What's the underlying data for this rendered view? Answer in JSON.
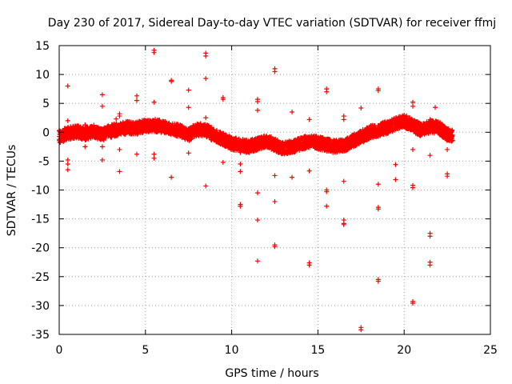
{
  "chart_data": {
    "type": "scatter",
    "title": "Day 230 of 2017, Sidereal Day-to-day VTEC variation (SDTVAR) for receiver ffmj",
    "xlabel": "GPS time / hours",
    "ylabel": "SDTVAR / TECUs",
    "xlim": [
      0,
      25
    ],
    "ylim": [
      -35,
      15
    ],
    "xticks": [
      0,
      5,
      10,
      15,
      20,
      25
    ],
    "yticks": [
      -35,
      -30,
      -25,
      -20,
      -15,
      -10,
      -5,
      0,
      5,
      10,
      15
    ],
    "grid": true,
    "marker": "+",
    "color": "#ff0000",
    "band": [
      [
        0.0,
        -0.8
      ],
      [
        0.5,
        -0.2
      ],
      [
        1.0,
        0.1
      ],
      [
        1.5,
        -0.3
      ],
      [
        2.0,
        0.2
      ],
      [
        2.5,
        -0.4
      ],
      [
        3.0,
        0.2
      ],
      [
        3.5,
        0.5
      ],
      [
        4.0,
        0.8
      ],
      [
        4.5,
        0.7
      ],
      [
        5.0,
        1.1
      ],
      [
        5.5,
        1.2
      ],
      [
        6.0,
        1.0
      ],
      [
        6.5,
        0.6
      ],
      [
        7.0,
        0.2
      ],
      [
        7.5,
        -0.5
      ],
      [
        8.0,
        0.5
      ],
      [
        8.5,
        0.3
      ],
      [
        9.0,
        -0.5
      ],
      [
        9.5,
        -1.2
      ],
      [
        10.0,
        -2.0
      ],
      [
        10.5,
        -2.2
      ],
      [
        11.0,
        -2.5
      ],
      [
        11.5,
        -2.0
      ],
      [
        12.0,
        -1.5
      ],
      [
        12.5,
        -2.2
      ],
      [
        13.0,
        -2.8
      ],
      [
        13.5,
        -2.5
      ],
      [
        14.0,
        -2.0
      ],
      [
        14.5,
        -1.6
      ],
      [
        15.0,
        -1.8
      ],
      [
        15.5,
        -2.2
      ],
      [
        16.0,
        -2.5
      ],
      [
        16.5,
        -2.3
      ],
      [
        17.0,
        -1.5
      ],
      [
        17.5,
        -0.8
      ],
      [
        18.0,
        0.0
      ],
      [
        18.5,
        0.4
      ],
      [
        19.0,
        0.8
      ],
      [
        19.5,
        1.4
      ],
      [
        20.0,
        1.9
      ],
      [
        20.5,
        1.2
      ],
      [
        21.0,
        0.3
      ],
      [
        21.5,
        1.0
      ],
      [
        22.0,
        0.8
      ],
      [
        22.5,
        -0.4
      ],
      [
        22.8,
        -0.6
      ]
    ],
    "outliers": [
      [
        0.5,
        8.0
      ],
      [
        0.5,
        2.0
      ],
      [
        0.5,
        -4.8
      ],
      [
        0.5,
        -5.5
      ],
      [
        0.5,
        -6.5
      ],
      [
        1.5,
        1.3
      ],
      [
        1.5,
        -2.5
      ],
      [
        2.5,
        6.5
      ],
      [
        2.5,
        4.5
      ],
      [
        2.5,
        -2.5
      ],
      [
        2.5,
        -4.8
      ],
      [
        3.5,
        3.2
      ],
      [
        3.5,
        2.8
      ],
      [
        3.5,
        -3.0
      ],
      [
        3.5,
        -6.8
      ],
      [
        3.3,
        2.3
      ],
      [
        4.5,
        6.3
      ],
      [
        4.5,
        5.5
      ],
      [
        4.5,
        -3.8
      ],
      [
        5.5,
        14.2
      ],
      [
        5.5,
        13.8
      ],
      [
        5.5,
        5.2
      ],
      [
        5.5,
        -3.8
      ],
      [
        5.5,
        -4.5
      ],
      [
        6.5,
        9.0
      ],
      [
        6.5,
        8.8
      ],
      [
        6.5,
        -7.8
      ],
      [
        7.5,
        7.3
      ],
      [
        7.5,
        4.3
      ],
      [
        7.5,
        -3.6
      ],
      [
        8.5,
        13.7
      ],
      [
        8.5,
        13.2
      ],
      [
        8.5,
        9.3
      ],
      [
        8.5,
        2.5
      ],
      [
        8.5,
        -9.3
      ],
      [
        9.5,
        6.0
      ],
      [
        9.5,
        5.7
      ],
      [
        9.5,
        -5.2
      ],
      [
        10.5,
        -3.5
      ],
      [
        10.5,
        -5.5
      ],
      [
        10.5,
        -6.8
      ],
      [
        10.5,
        -12.5
      ],
      [
        10.5,
        -12.8
      ],
      [
        11.5,
        5.7
      ],
      [
        11.5,
        5.3
      ],
      [
        11.5,
        3.8
      ],
      [
        11.5,
        -10.5
      ],
      [
        11.5,
        -15.2
      ],
      [
        11.5,
        -22.3
      ],
      [
        12.5,
        11.0
      ],
      [
        12.5,
        10.5
      ],
      [
        12.5,
        -7.5
      ],
      [
        12.5,
        -12.0
      ],
      [
        12.5,
        -19.5
      ],
      [
        12.5,
        -19.8
      ],
      [
        13.5,
        3.5
      ],
      [
        13.5,
        -7.8
      ],
      [
        14.5,
        2.2
      ],
      [
        14.5,
        -6.7
      ],
      [
        14.5,
        -22.6
      ],
      [
        14.5,
        -23.0
      ],
      [
        15.5,
        7.5
      ],
      [
        15.5,
        7.0
      ],
      [
        15.5,
        -10.0
      ],
      [
        15.5,
        -10.3
      ],
      [
        15.5,
        -12.8
      ],
      [
        16.5,
        2.8
      ],
      [
        16.5,
        2.2
      ],
      [
        16.5,
        -8.5
      ],
      [
        16.5,
        -15.2
      ],
      [
        16.5,
        -15.8
      ],
      [
        16.5,
        -16.0
      ],
      [
        17.5,
        4.2
      ],
      [
        17.5,
        -33.8
      ],
      [
        17.5,
        -34.2
      ],
      [
        18.5,
        7.5
      ],
      [
        18.5,
        7.2
      ],
      [
        18.5,
        -9.0
      ],
      [
        18.5,
        -13.0
      ],
      [
        18.5,
        -13.3
      ],
      [
        18.5,
        -25.5
      ],
      [
        18.5,
        -25.8
      ],
      [
        19.5,
        2.0
      ],
      [
        19.5,
        -5.6
      ],
      [
        19.5,
        -8.2
      ],
      [
        20.5,
        5.2
      ],
      [
        20.5,
        4.5
      ],
      [
        20.5,
        -3.0
      ],
      [
        20.5,
        -9.2
      ],
      [
        20.5,
        -9.6
      ],
      [
        20.5,
        -29.3
      ],
      [
        20.5,
        -29.6
      ],
      [
        21.5,
        2.2
      ],
      [
        21.5,
        -4.0
      ],
      [
        21.5,
        -17.5
      ],
      [
        21.5,
        -18.0
      ],
      [
        21.5,
        -22.5
      ],
      [
        21.5,
        -23.0
      ],
      [
        21.8,
        4.3
      ],
      [
        22.5,
        -3.0
      ],
      [
        22.5,
        -7.2
      ],
      [
        22.5,
        -7.6
      ]
    ]
  }
}
